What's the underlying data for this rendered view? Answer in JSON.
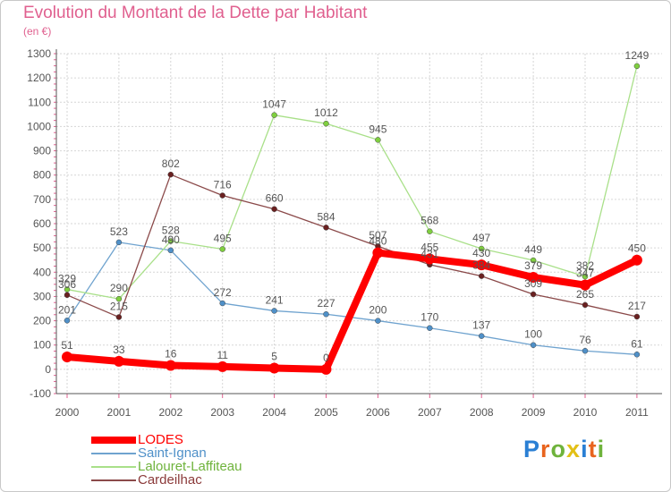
{
  "title": "Evolution du Montant de la Dette par Habitant",
  "unit_label": "(en €)",
  "logo": {
    "text": "Proxiti",
    "colors": [
      "#2a7fd4",
      "#e8641e",
      "#6fb33c",
      "#e3c016",
      "#2a7fd4",
      "#e8641e",
      "#6fb33c"
    ]
  },
  "colors": {
    "title": "#e0608f",
    "grid": "#d6d6d6",
    "axis": "#555555",
    "tick": "#e06090",
    "label": "#555555"
  },
  "chart_data": {
    "type": "line",
    "categories": [
      "2000",
      "2001",
      "2002",
      "2003",
      "2004",
      "2005",
      "2006",
      "2007",
      "2008",
      "2009",
      "2010",
      "2011"
    ],
    "ylim": [
      -100,
      1300
    ],
    "yticks": [
      -100,
      0,
      100,
      200,
      300,
      400,
      500,
      600,
      700,
      800,
      900,
      1000,
      1100,
      1200,
      1300
    ],
    "grid": true,
    "legend_position": "bottom-left",
    "series": [
      {
        "name": "Saint-Ignan",
        "color": "#6fa3cf",
        "marker": "#4f90c8",
        "width": 1.3,
        "values": [
          201,
          523,
          490,
          272,
          241,
          227,
          200,
          170,
          137,
          100,
          76,
          61
        ]
      },
      {
        "name": "Lalouret-Laffiteau",
        "color": "#a9e089",
        "marker": "#7fcf3f",
        "width": 1.3,
        "values": [
          329,
          290,
          528,
          495,
          1047,
          1012,
          945,
          568,
          497,
          449,
          382,
          1249
        ]
      },
      {
        "name": "Cardeilhac",
        "color": "#8b4a4a",
        "marker": "#6a2020",
        "width": 1.3,
        "values": [
          306,
          215,
          802,
          716,
          660,
          584,
          507,
          431,
          384,
          309,
          265,
          217
        ]
      },
      {
        "name": "LODES",
        "color": "#ff0000",
        "marker": "#ff0000",
        "width": 8,
        "values": [
          51,
          33,
          16,
          11,
          5,
          0,
          480,
          455,
          430,
          379,
          347,
          450
        ]
      }
    ],
    "legend_order": [
      "LODES",
      "Saint-Ignan",
      "Lalouret-Laffiteau",
      "Cardeilhac"
    ]
  }
}
